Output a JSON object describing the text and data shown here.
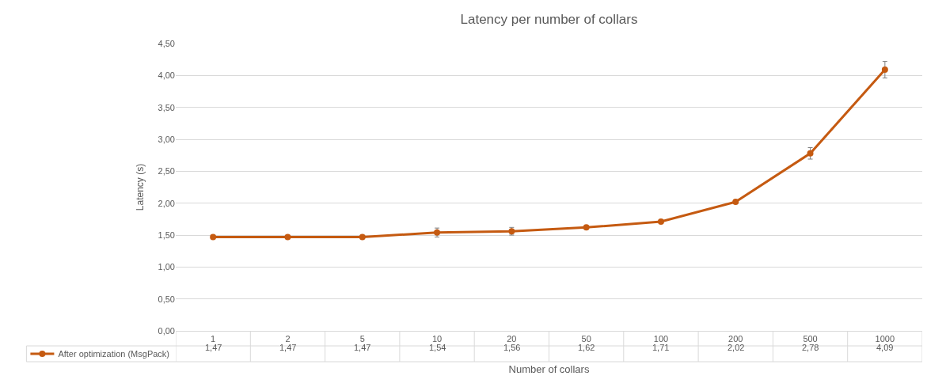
{
  "chart_data": {
    "type": "line",
    "title": "Latency per number of collars",
    "xlabel": "Number of collars",
    "ylabel": "Latency (s)",
    "categories": [
      "1",
      "2",
      "5",
      "10",
      "20",
      "50",
      "100",
      "200",
      "500",
      "1000"
    ],
    "series": [
      {
        "name": "After optimization (MsgPack)",
        "color": "#c55a11",
        "values": [
          1.47,
          1.47,
          1.47,
          1.54,
          1.56,
          1.62,
          1.71,
          2.02,
          2.78,
          4.09
        ],
        "errors": [
          null,
          null,
          null,
          0.07,
          0.06,
          null,
          null,
          null,
          0.09,
          0.13
        ],
        "value_labels": [
          "1,47",
          "1,47",
          "1,47",
          "1,54",
          "1,56",
          "1,62",
          "1,71",
          "2,02",
          "2,78",
          "4,09"
        ]
      }
    ],
    "ylim": [
      0,
      4.5
    ],
    "yticks": [
      {
        "value": 0,
        "label": "0,00"
      },
      {
        "value": 0.5,
        "label": "0,50"
      },
      {
        "value": 1,
        "label": "1,00"
      },
      {
        "value": 1.5,
        "label": "1,50"
      },
      {
        "value": 2,
        "label": "2,00"
      },
      {
        "value": 2.5,
        "label": "2,50"
      },
      {
        "value": 3,
        "label": "3,00"
      },
      {
        "value": 3.5,
        "label": "3,50"
      },
      {
        "value": 4,
        "label": "4,00"
      },
      {
        "value": 4.5,
        "label": "4,50"
      }
    ],
    "grid": "y",
    "marker": "circle",
    "line_style": "solid",
    "legend": "bottom left"
  }
}
